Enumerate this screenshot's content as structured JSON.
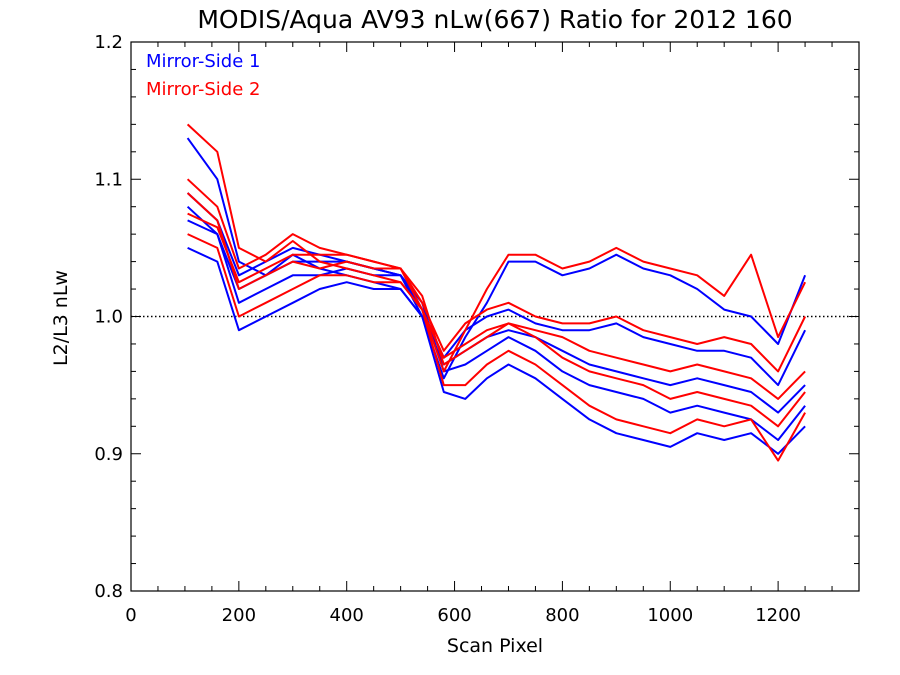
{
  "chart_data": {
    "type": "line",
    "title": "MODIS/Aqua AV93 nLw(667) Ratio for 2012 160",
    "xlabel": "Scan Pixel",
    "ylabel": "L2/L3 nLw",
    "xlim": [
      0,
      1350
    ],
    "ylim": [
      0.8,
      1.2
    ],
    "x_ticks": [
      0,
      200,
      400,
      600,
      800,
      1000,
      1200
    ],
    "x_tick_labels": [
      "0",
      "200",
      "400",
      "600",
      "800",
      "1000",
      "1200"
    ],
    "y_ticks": [
      0.8,
      0.9,
      1.0,
      1.1,
      1.2
    ],
    "y_tick_labels": [
      "0.8",
      "0.9",
      "1.0",
      "1.1",
      "1.2"
    ],
    "reference_line": {
      "y": 1.0,
      "style": "dotted",
      "color": "#000000"
    },
    "grid": false,
    "legend_position": "top-left",
    "legend": [
      {
        "label": "Mirror-Side 1",
        "color": "#0000ff"
      },
      {
        "label": "Mirror-Side 2",
        "color": "#ff0000"
      }
    ],
    "x": [
      105,
      160,
      200,
      250,
      300,
      350,
      400,
      450,
      500,
      540,
      580,
      620,
      660,
      700,
      750,
      800,
      850,
      900,
      950,
      1000,
      1050,
      1100,
      1150,
      1200,
      1250
    ],
    "series": [
      {
        "mirror_side": 1,
        "color": "#0000ff",
        "values": [
          1.13,
          1.1,
          1.04,
          1.03,
          1.045,
          1.035,
          1.03,
          1.025,
          1.02,
          1.0,
          0.965,
          0.975,
          0.985,
          0.99,
          0.985,
          0.975,
          0.965,
          0.96,
          0.955,
          0.95,
          0.955,
          0.95,
          0.945,
          0.93,
          0.95
        ]
      },
      {
        "mirror_side": 1,
        "color": "#0000ff",
        "values": [
          1.08,
          1.06,
          1.01,
          1.02,
          1.03,
          1.03,
          1.035,
          1.03,
          1.03,
          1.01,
          0.96,
          0.965,
          0.975,
          0.985,
          0.975,
          0.96,
          0.95,
          0.945,
          0.94,
          0.93,
          0.935,
          0.93,
          0.925,
          0.91,
          0.935
        ]
      },
      {
        "mirror_side": 1,
        "color": "#0000ff",
        "values": [
          1.05,
          1.04,
          0.99,
          1.0,
          1.01,
          1.02,
          1.025,
          1.02,
          1.02,
          1.0,
          0.945,
          0.94,
          0.955,
          0.965,
          0.955,
          0.94,
          0.925,
          0.915,
          0.91,
          0.905,
          0.915,
          0.91,
          0.915,
          0.9,
          0.92
        ]
      },
      {
        "mirror_side": 1,
        "color": "#0000ff",
        "values": [
          1.07,
          1.06,
          1.02,
          1.03,
          1.04,
          1.04,
          1.04,
          1.035,
          1.03,
          1.0,
          0.955,
          0.985,
          1.01,
          1.04,
          1.04,
          1.03,
          1.035,
          1.045,
          1.035,
          1.03,
          1.02,
          1.005,
          1.0,
          0.98,
          1.03
        ]
      },
      {
        "mirror_side": 1,
        "color": "#0000ff",
        "values": [
          1.09,
          1.07,
          1.03,
          1.04,
          1.05,
          1.045,
          1.04,
          1.035,
          1.03,
          1.005,
          0.97,
          0.99,
          1.0,
          1.005,
          0.995,
          0.99,
          0.99,
          0.995,
          0.985,
          0.98,
          0.975,
          0.975,
          0.97,
          0.95,
          0.99
        ]
      },
      {
        "mirror_side": 2,
        "color": "#ff0000",
        "values": [
          1.14,
          1.12,
          1.05,
          1.04,
          1.055,
          1.04,
          1.035,
          1.03,
          1.025,
          1.005,
          0.97,
          0.98,
          0.99,
          0.995,
          0.99,
          0.985,
          0.975,
          0.97,
          0.965,
          0.96,
          0.965,
          0.96,
          0.955,
          0.94,
          0.96
        ]
      },
      {
        "mirror_side": 2,
        "color": "#ff0000",
        "values": [
          1.09,
          1.07,
          1.02,
          1.03,
          1.04,
          1.035,
          1.04,
          1.035,
          1.035,
          1.015,
          0.965,
          0.975,
          0.985,
          0.995,
          0.985,
          0.97,
          0.96,
          0.955,
          0.95,
          0.94,
          0.945,
          0.94,
          0.935,
          0.92,
          0.945
        ]
      },
      {
        "mirror_side": 2,
        "color": "#ff0000",
        "values": [
          1.06,
          1.05,
          1.0,
          1.01,
          1.02,
          1.03,
          1.03,
          1.025,
          1.025,
          1.005,
          0.95,
          0.95,
          0.965,
          0.975,
          0.965,
          0.95,
          0.935,
          0.925,
          0.92,
          0.915,
          0.925,
          0.92,
          0.925,
          0.895,
          0.93
        ]
      },
      {
        "mirror_side": 2,
        "color": "#ff0000",
        "values": [
          1.075,
          1.065,
          1.025,
          1.035,
          1.045,
          1.045,
          1.045,
          1.04,
          1.035,
          1.005,
          0.96,
          0.99,
          1.02,
          1.045,
          1.045,
          1.035,
          1.04,
          1.05,
          1.04,
          1.035,
          1.03,
          1.015,
          1.045,
          0.985,
          1.025
        ]
      },
      {
        "mirror_side": 2,
        "color": "#ff0000",
        "values": [
          1.1,
          1.08,
          1.035,
          1.045,
          1.06,
          1.05,
          1.045,
          1.04,
          1.035,
          1.01,
          0.975,
          0.995,
          1.005,
          1.01,
          1.0,
          0.995,
          0.995,
          1.0,
          0.99,
          0.985,
          0.98,
          0.985,
          0.98,
          0.96,
          1.0
        ]
      }
    ]
  }
}
